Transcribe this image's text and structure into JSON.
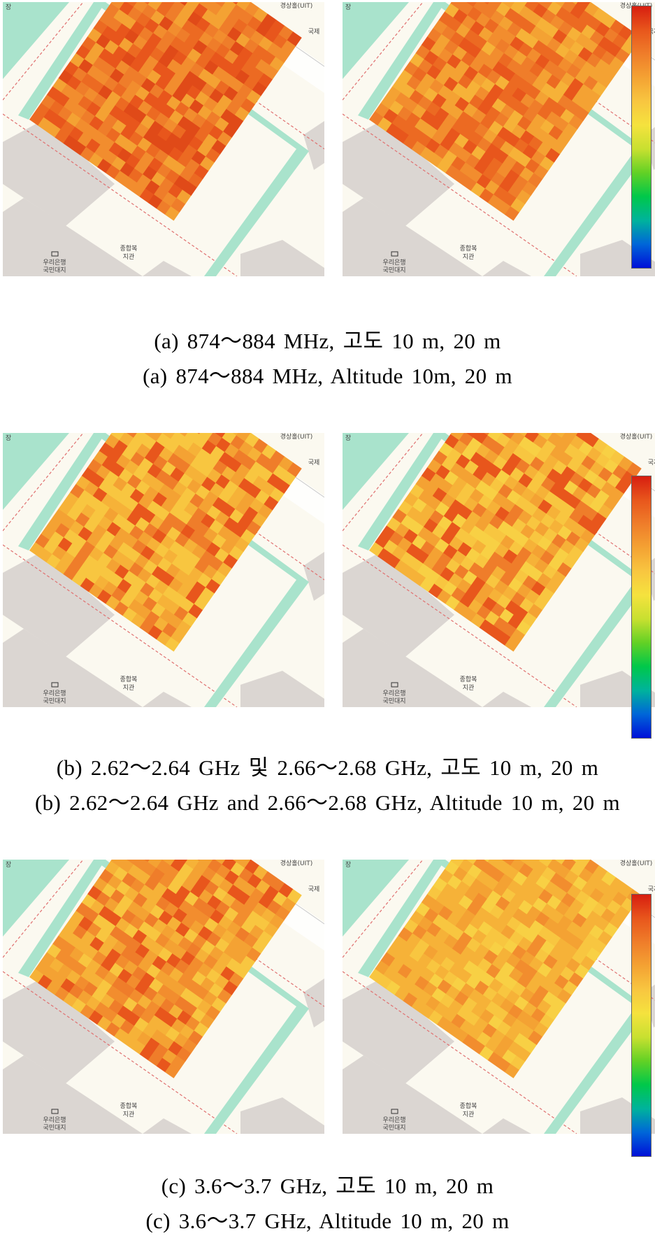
{
  "figure": {
    "colors": {
      "map_background": "#fbf9f0",
      "building": "#dbd6d2",
      "green_area": "#a9e3cc",
      "road_line": "#e07070",
      "heat_scale": [
        "#d71e10",
        "#e8561c",
        "#ef7d2a",
        "#f4a233",
        "#f8c640",
        "#f5e23e",
        "#c8e030",
        "#62d125",
        "#00c84a",
        "#00b39c",
        "#0066d8",
        "#0010d8"
      ]
    },
    "map_labels": {
      "bank_top": "우리은행",
      "bank_bottom": "국민대지",
      "building_top": "종합복",
      "building_bottom": "지관",
      "corner_top_left": "장",
      "corner_top_right": "경상홀(UIT)",
      "edge_right": "국제"
    },
    "rows": [
      {
        "id": "a",
        "caption_ko": "(a) 874～884 MHz, 고도 10 m, 20 m",
        "caption_en": "(a) 874～884 MHz, Altitude 10m, 20 m",
        "levels": {
          "10 m": "high",
          "20 m": "high"
        }
      },
      {
        "id": "b",
        "caption_ko": "(b) 2.62～2.64 GHz 및 2.66～2.68 GHz, 고도 10 m, 20 m",
        "caption_en": "(b) 2.62～2.64 GHz and 2.66～2.68 GHz, Altitude 10 m, 20 m",
        "levels": {
          "10 m": "medium-high",
          "20 m": "medium"
        }
      },
      {
        "id": "c",
        "caption_ko": "(c) 3.6～3.7 GHz, 고도 10 m, 20 m",
        "caption_en": "(c) 3.6～3.7 GHz, Altitude 10 m, 20 m",
        "levels": {
          "10 m": "medium",
          "20 m": "medium-low"
        }
      }
    ]
  }
}
